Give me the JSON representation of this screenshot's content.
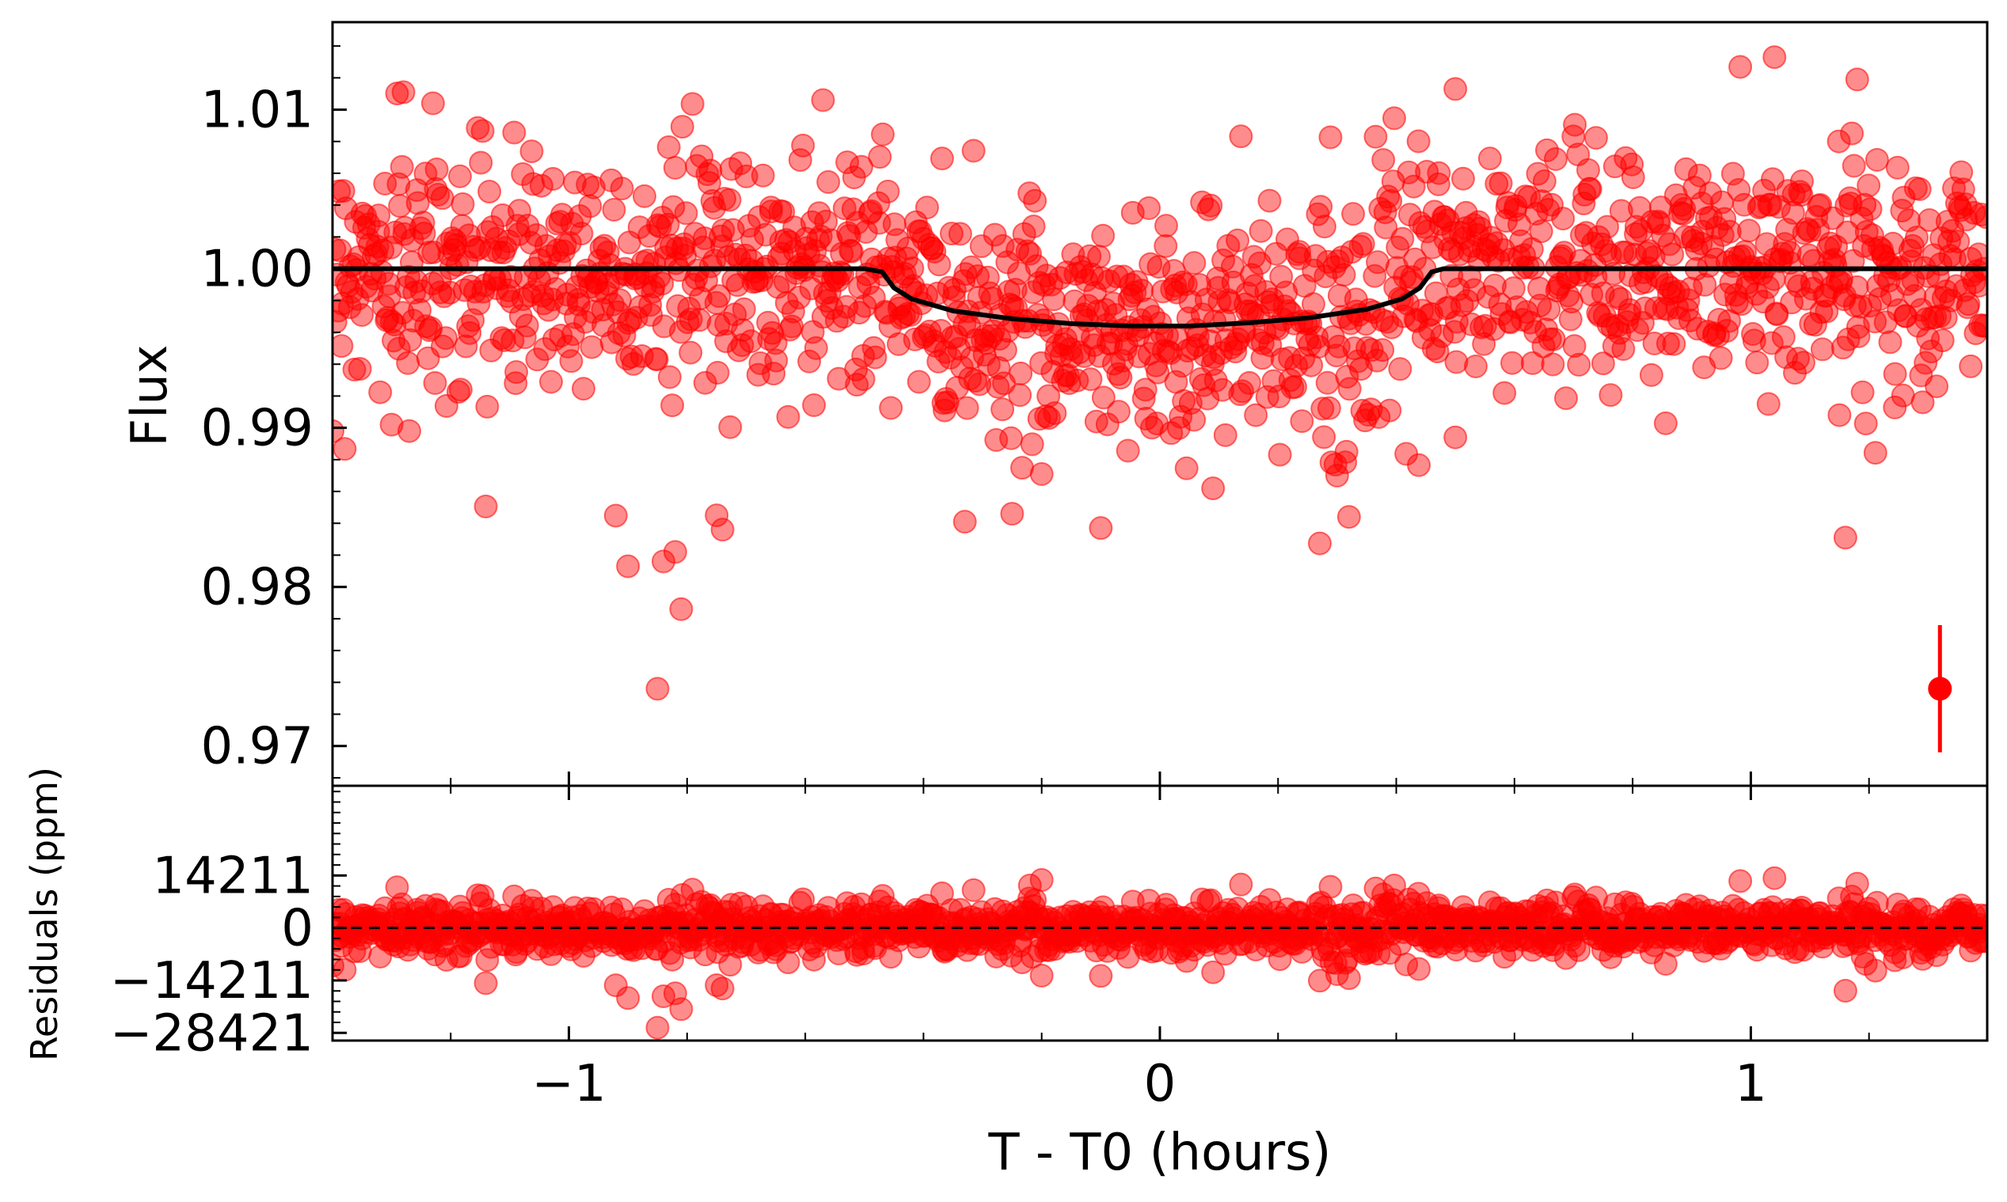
{
  "chart_data": [
    {
      "type": "scatter",
      "panel": "top",
      "ylabel": "Flux",
      "xlim": [
        -1.4,
        1.4
      ],
      "ylim": [
        0.9675,
        1.0155
      ],
      "yticks": [
        {
          "value": 0.97,
          "label": "0.97"
        },
        {
          "value": 0.98,
          "label": "0.98"
        },
        {
          "value": 0.99,
          "label": "0.99"
        },
        {
          "value": 1.0,
          "label": "1.00"
        },
        {
          "value": 1.01,
          "label": "1.01"
        }
      ],
      "xticks": [
        -1,
        0,
        1
      ],
      "grid": false,
      "point_color": "#ff0000",
      "point_alpha": 0.45,
      "model": {
        "description": "transit model",
        "color": "#000000",
        "points": [
          [
            -1.4,
            1.0
          ],
          [
            -0.5,
            1.0
          ],
          [
            -0.47,
            0.9998
          ],
          [
            -0.45,
            0.9988
          ],
          [
            -0.42,
            0.9981
          ],
          [
            -0.35,
            0.99735
          ],
          [
            -0.25,
            0.99685
          ],
          [
            -0.15,
            0.99655
          ],
          [
            -0.05,
            0.9964
          ],
          [
            0.05,
            0.9964
          ],
          [
            0.15,
            0.9966
          ],
          [
            0.25,
            0.9969
          ],
          [
            0.35,
            0.99745
          ],
          [
            0.41,
            0.9981
          ],
          [
            0.44,
            0.9988
          ],
          [
            0.46,
            0.9998
          ],
          [
            0.48,
            1.0
          ],
          [
            1.4,
            1.0
          ]
        ]
      },
      "outliers": [
        [
          -1.3,
          0.9902
        ],
        [
          -1.27,
          0.9898
        ],
        [
          -1.28,
          1.0111
        ],
        [
          -1.23,
          1.0104
        ],
        [
          -0.9,
          0.9813
        ],
        [
          -0.85,
          0.9736
        ],
        [
          -0.84,
          0.9816
        ],
        [
          -0.82,
          0.9822
        ],
        [
          -0.81,
          0.9786
        ],
        [
          -0.75,
          0.9845
        ],
        [
          -0.74,
          0.9836
        ],
        [
          -0.57,
          1.0106
        ],
        [
          -0.33,
          0.9841
        ],
        [
          -0.25,
          0.9846
        ],
        [
          -0.1,
          0.9837
        ],
        [
          -0.2,
          0.9871
        ],
        [
          0.09,
          0.9862
        ],
        [
          0.3,
          0.987
        ],
        [
          0.32,
          0.9844
        ],
        [
          0.5,
          1.0113
        ],
        [
          0.5,
          0.9894
        ],
        [
          1.04,
          1.0133
        ],
        [
          1.18,
          1.0119
        ],
        [
          1.16,
          0.9831
        ],
        [
          1.15,
          0.9908
        ],
        [
          1.03,
          0.9915
        ],
        [
          0.86,
          0.9953
        ]
      ],
      "errorbar": {
        "x": 1.32,
        "y": 0.9736,
        "yerr": 0.004,
        "color": "#ff0000"
      },
      "scatter_spec": {
        "n_points": 1400,
        "baseline": 1.0,
        "scatter_sigma": 0.0037,
        "x_range": [
          -1.4,
          1.4
        ]
      }
    },
    {
      "type": "scatter",
      "panel": "bottom",
      "xlabel": "T - T0 (hours)",
      "ylabel": "Residuals (ppm)",
      "xlim": [
        -1.4,
        1.4
      ],
      "ylim": [
        -30500,
        38500
      ],
      "yticks": [
        {
          "value": 14211,
          "label": "14211"
        },
        {
          "value": 0,
          "label": "0"
        },
        {
          "value": -14211,
          "label": "−14211"
        },
        {
          "value": -28421,
          "label": "−28421"
        }
      ],
      "xticks": [
        {
          "value": -1,
          "label": "−1"
        },
        {
          "value": 0,
          "label": "0"
        },
        {
          "value": 1,
          "label": "1"
        }
      ],
      "zero_line": {
        "y": 0,
        "style": "dashed",
        "color": "#000000"
      },
      "point_color": "#ff0000",
      "point_alpha": 0.45,
      "outliers": [
        [
          -0.9,
          -19000
        ],
        [
          -0.85,
          -27000
        ],
        [
          -0.84,
          -18500
        ],
        [
          -0.82,
          -17700
        ],
        [
          -0.81,
          -22000
        ],
        [
          -0.75,
          -15500
        ],
        [
          -0.74,
          -16400
        ],
        [
          -0.2,
          -12900
        ],
        [
          -0.1,
          -13000
        ],
        [
          0.09,
          -12000
        ],
        [
          0.3,
          -12500
        ],
        [
          0.32,
          -13600
        ],
        [
          1.16,
          -17000
        ],
        [
          1.04,
          13500
        ],
        [
          1.18,
          12000
        ],
        [
          -0.22,
          11500
        ],
        [
          -0.2,
          13000
        ]
      ],
      "scatter_spec": {
        "n_points": 1400,
        "baseline": 0,
        "scatter_sigma": 3700,
        "x_range": [
          -1.4,
          1.4
        ]
      }
    }
  ]
}
